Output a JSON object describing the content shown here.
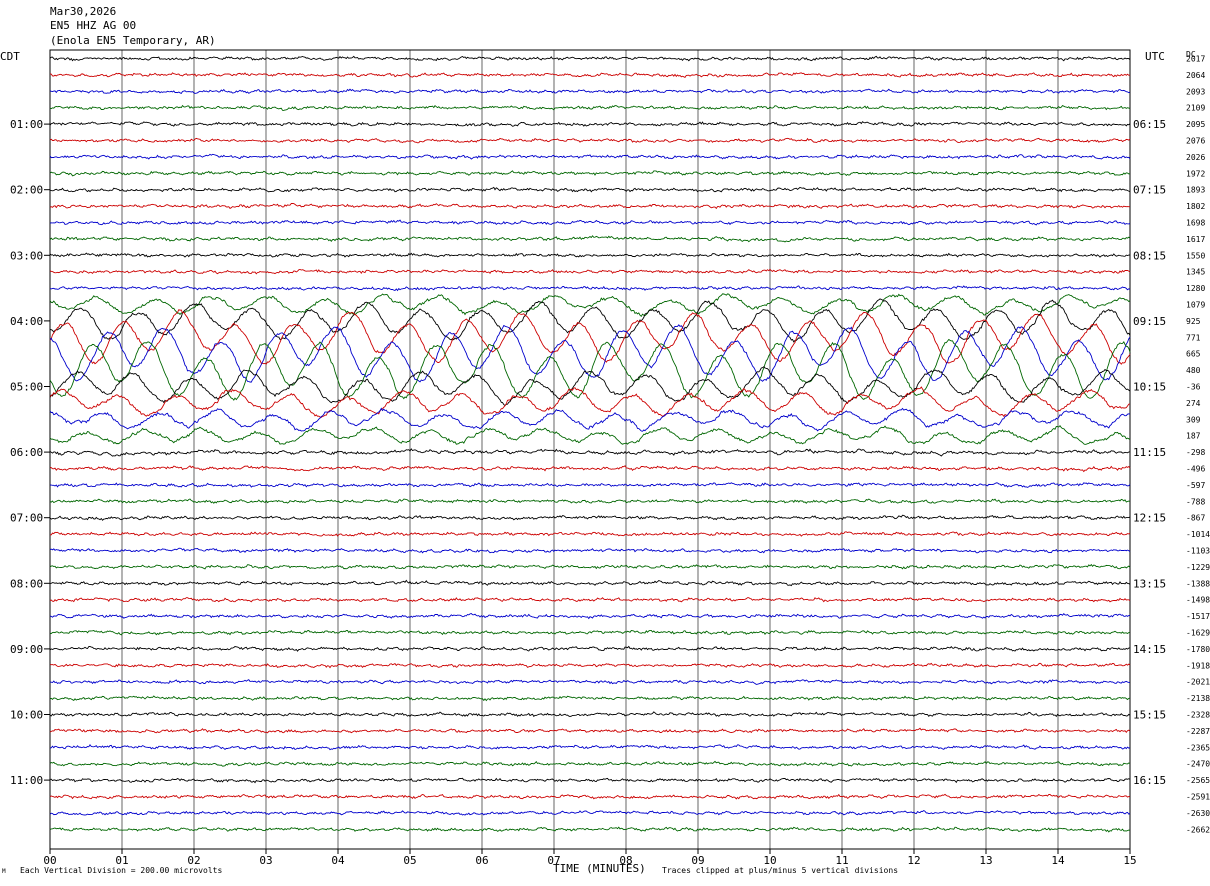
{
  "header": {
    "date": "Mar30,2026",
    "channel": "EN5 HHZ AG 00",
    "station": "(Enola EN5 Temporary, AR)"
  },
  "left_tz": "CDT",
  "right_tz": "UTC",
  "dc_label": "DC",
  "footer": {
    "scale": "Each Vertical Division =  200.00 microvolts",
    "xlabel": "TIME (MINUTES)",
    "clip": "Traces clipped at plus/minus 5 vertical divisions",
    "corner": "M"
  },
  "colors": {
    "cycle": [
      "#000000",
      "#cc0000",
      "#0000cc",
      "#006600"
    ],
    "grid": "#000000"
  },
  "chart_data": {
    "type": "line",
    "title": "EN5 HHZ AG 00",
    "xlabel": "TIME (MINUTES)",
    "x_ticks": [
      "00",
      "01",
      "02",
      "03",
      "04",
      "05",
      "06",
      "07",
      "08",
      "09",
      "10",
      "11",
      "12",
      "13",
      "14",
      "15"
    ],
    "xlim": [
      0,
      15
    ],
    "traces_per_hour": 4,
    "minutes_per_trace": 15,
    "left_hour_labels": [
      "01:00",
      "02:00",
      "03:00",
      "04:00",
      "05:00",
      "06:00",
      "07:00",
      "08:00",
      "09:00",
      "10:00",
      "11:00"
    ],
    "right_hour_labels": [
      "06:15",
      "07:15",
      "08:15",
      "09:15",
      "10:15",
      "11:15",
      "12:15",
      "13:15",
      "14:15",
      "15:15",
      "16:15"
    ],
    "dc_offsets": [
      "2017",
      "2064",
      "2093",
      "2109",
      "2095",
      "2076",
      "2026",
      "1972",
      "1893",
      "1802",
      "1698",
      "1617",
      "1550",
      "1345",
      "1280",
      "1079",
      "925",
      "771",
      "665",
      "480",
      "-36",
      "274",
      "309",
      "187",
      "-298",
      "-496",
      "-597",
      "-788",
      "-867",
      "-1014",
      "-1103",
      "-1229",
      "-1388",
      "-1498",
      "-1517",
      "-1629",
      "-1780",
      "-1918",
      "-2021",
      "-2138",
      "-2328",
      "-2287",
      "-2365",
      "-2470",
      "-2565",
      "-2591",
      "-2630",
      "-2662"
    ],
    "activity": [
      1,
      1,
      1,
      1,
      1,
      1,
      1,
      1,
      1,
      1,
      1.2,
      1.6,
      1,
      1,
      1,
      3,
      6,
      8,
      9,
      10,
      5,
      4,
      3,
      2.5,
      2,
      1.4,
      1.2,
      1,
      1,
      1,
      1,
      1,
      1,
      1,
      1,
      1,
      1,
      1,
      1,
      1,
      1,
      1,
      1,
      1,
      1,
      1.1,
      1,
      1
    ],
    "series": [
      {
        "name": "trace"
      }
    ]
  }
}
